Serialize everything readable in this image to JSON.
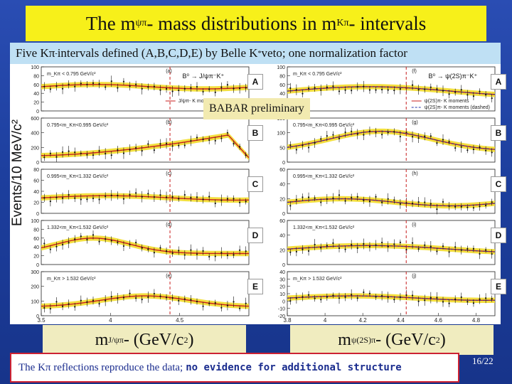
{
  "slide": {
    "title": {
      "prefix": "The m",
      "sub1": "ψπ",
      "middle": "- mass distributions in m",
      "sub2": "Kπ",
      "suffix": "- intervals"
    },
    "subtitle": {
      "prefix": "Five Kπ",
      "sup": "-",
      "middle": " intervals defined (A,B,C,D,E) by Belle K",
      "sup2": "*",
      "suffix": " veto; one normalization factor"
    },
    "watermark": "BABAR preliminary",
    "y_axis_label": "Events/10 MeV/c²",
    "x_label_left": {
      "prefix": "m",
      "sub": "J/ψπ",
      "suffix": "- (GeV/c",
      "sup": "2",
      "end": ")"
    },
    "x_label_right": {
      "prefix": "m",
      "sub": "ψ(2S)π",
      "suffix": "- (GeV/c",
      "sup": "2",
      "end": ")"
    },
    "conclusion": {
      "text": "The Kπ reflections reproduce the data;",
      "bold": "no evidence for additional structure"
    },
    "page": "16/22",
    "interval_labels": [
      "A",
      "B",
      "C",
      "D",
      "E"
    ]
  },
  "chart_data": [
    {
      "type": "line",
      "panel": "left",
      "legend": [
        "J/ψπ- K moments"
      ],
      "x_tick_labels": [
        "3.5",
        "4",
        "4.5"
      ],
      "xlim": [
        3.5,
        5.0
      ],
      "marker_line_x": 4.43,
      "rows": [
        {
          "id": "A",
          "tag": "(a)",
          "cut": "m_Kπ < 0.795 GeV/c²",
          "process": "B⁰ → J/ψπ⁻K⁺",
          "y_ticks": [
            0,
            20,
            40,
            60,
            80,
            100
          ]
        },
        {
          "id": "B",
          "tag": "(b)",
          "cut": "0.795<m_Kπ<0.995 GeV/c²",
          "y_ticks": [
            0,
            200,
            400,
            600
          ]
        },
        {
          "id": "C",
          "tag": "(c)",
          "cut": "0.995<m_Kπ<1.332 GeV/c²",
          "y_ticks": [
            0,
            20,
            40,
            60,
            80
          ]
        },
        {
          "id": "D",
          "tag": "(d)",
          "cut": "1.332<m_Kπ<1.532 GeV/c²",
          "y_ticks": [
            0,
            20,
            40,
            60,
            80,
            100
          ]
        },
        {
          "id": "E",
          "tag": "(e)",
          "cut": "m_Kπ > 1.532 GeV/c²",
          "y_ticks": [
            0,
            100,
            200,
            300
          ]
        }
      ]
    },
    {
      "type": "line",
      "panel": "right",
      "legend": [
        "ψ(2S)π- K moments",
        "ψ(2S)π- K moments (dashed)"
      ],
      "x_tick_labels": [
        "3.8",
        "4",
        "4.2",
        "4.4",
        "4.6",
        "4.8"
      ],
      "xlim": [
        3.8,
        4.9
      ],
      "marker_line_x": 4.43,
      "rows": [
        {
          "id": "A",
          "tag": "(f)",
          "cut": "m_Kπ < 0.795 GeV/c²",
          "process": "B⁰ → ψ(2S)π⁻K⁺",
          "y_ticks": [
            0,
            20,
            40,
            60,
            80,
            100
          ]
        },
        {
          "id": "B",
          "tag": "(g)",
          "cut": "0.795<m_Kπ<0.995 GeV/c²",
          "y_ticks": [
            0,
            50,
            100,
            150
          ]
        },
        {
          "id": "C",
          "tag": "(h)",
          "cut": "0.995<m_Kπ<1.332 GeV/c²",
          "y_ticks": [
            0,
            20,
            40,
            60
          ]
        },
        {
          "id": "D",
          "tag": "(i)",
          "cut": "1.332<m_Kπ<1.532 GeV/c²",
          "y_ticks": [
            0,
            20,
            40,
            60
          ]
        },
        {
          "id": "E",
          "tag": "(j)",
          "cut": "m_Kπ > 1.532 GeV/c²",
          "y_ticks": [
            -20,
            -10,
            0,
            10,
            20,
            30,
            40
          ]
        }
      ]
    }
  ]
}
